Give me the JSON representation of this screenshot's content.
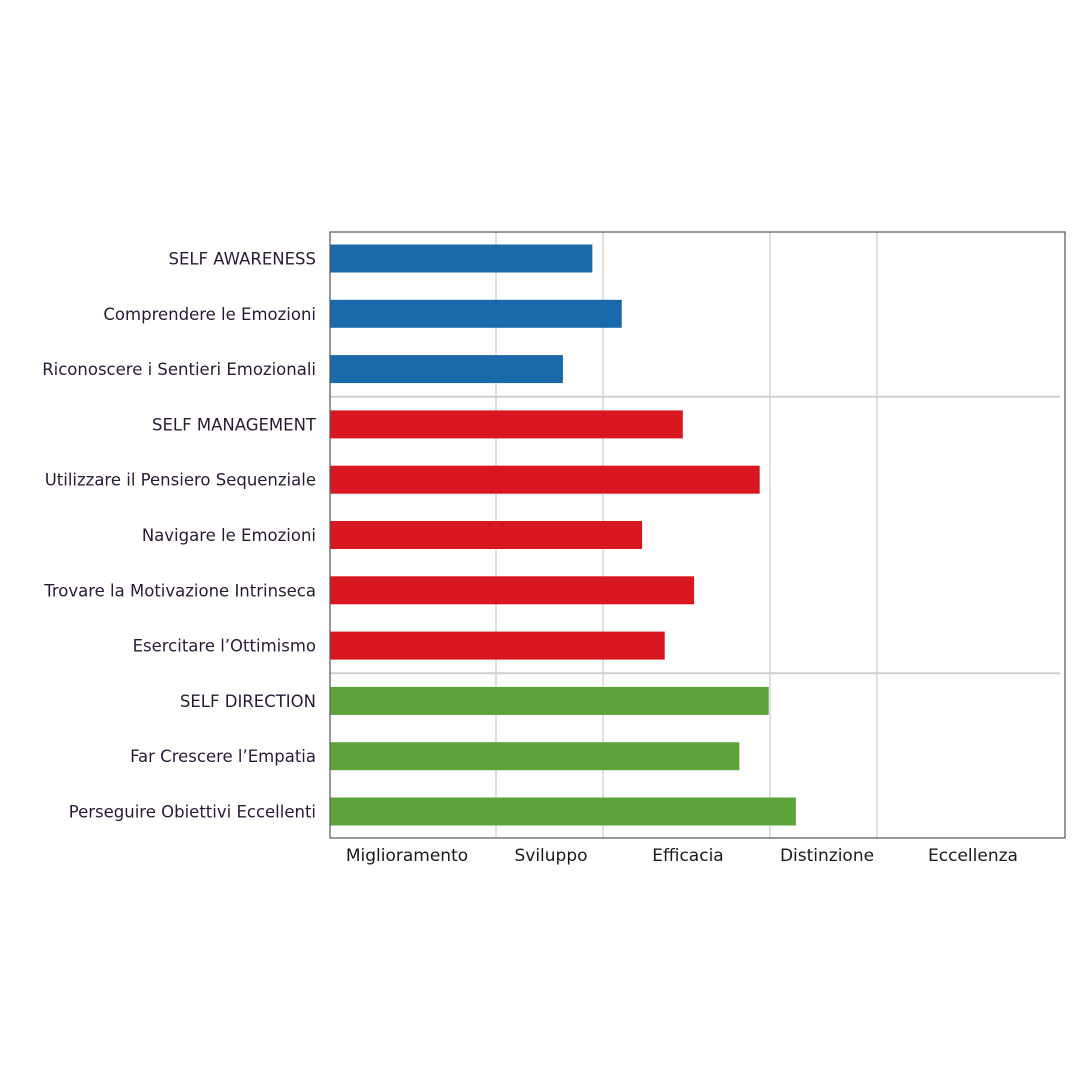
{
  "chart_data": {
    "type": "bar",
    "orientation": "horizontal",
    "categories": [
      "SELF AWARENESS",
      "Comprendere le Emozioni",
      "Riconoscere i Sentieri Emozionali",
      "SELF MANAGEMENT",
      "Utilizzare il Pensiero Sequenziale",
      "Navigare le Emozioni",
      "Trovare la Motivazione Intrinseca",
      "Esercitare l’Ottimismo",
      "SELF DIRECTION",
      "Far Crescere l’Empatia",
      "Perseguire Obiettivi Eccellenti"
    ],
    "values": [
      1.16,
      1.29,
      1.03,
      1.56,
      1.9,
      1.38,
      1.61,
      1.48,
      1.94,
      1.81,
      2.06
    ],
    "bar_colors": [
      "#1a6aab",
      "#1a6aab",
      "#1a6aab",
      "#d9171f",
      "#d9171f",
      "#d9171f",
      "#d9171f",
      "#d9171f",
      "#5da33a",
      "#5da33a",
      "#5da33a"
    ],
    "groups": [
      {
        "color": "#1a6aab",
        "from": 0,
        "to": 2
      },
      {
        "color": "#d9171f",
        "from": 3,
        "to": 7
      },
      {
        "color": "#5da33a",
        "from": 8,
        "to": 10
      }
    ],
    "xticks": [
      "Miglioramento",
      "Sviluppo",
      "Efficacia",
      "Distinzione",
      "Eccellenza"
    ],
    "xlim": [
      0,
      3.25
    ],
    "grid": true,
    "title": "",
    "xlabel": "",
    "ylabel": ""
  }
}
